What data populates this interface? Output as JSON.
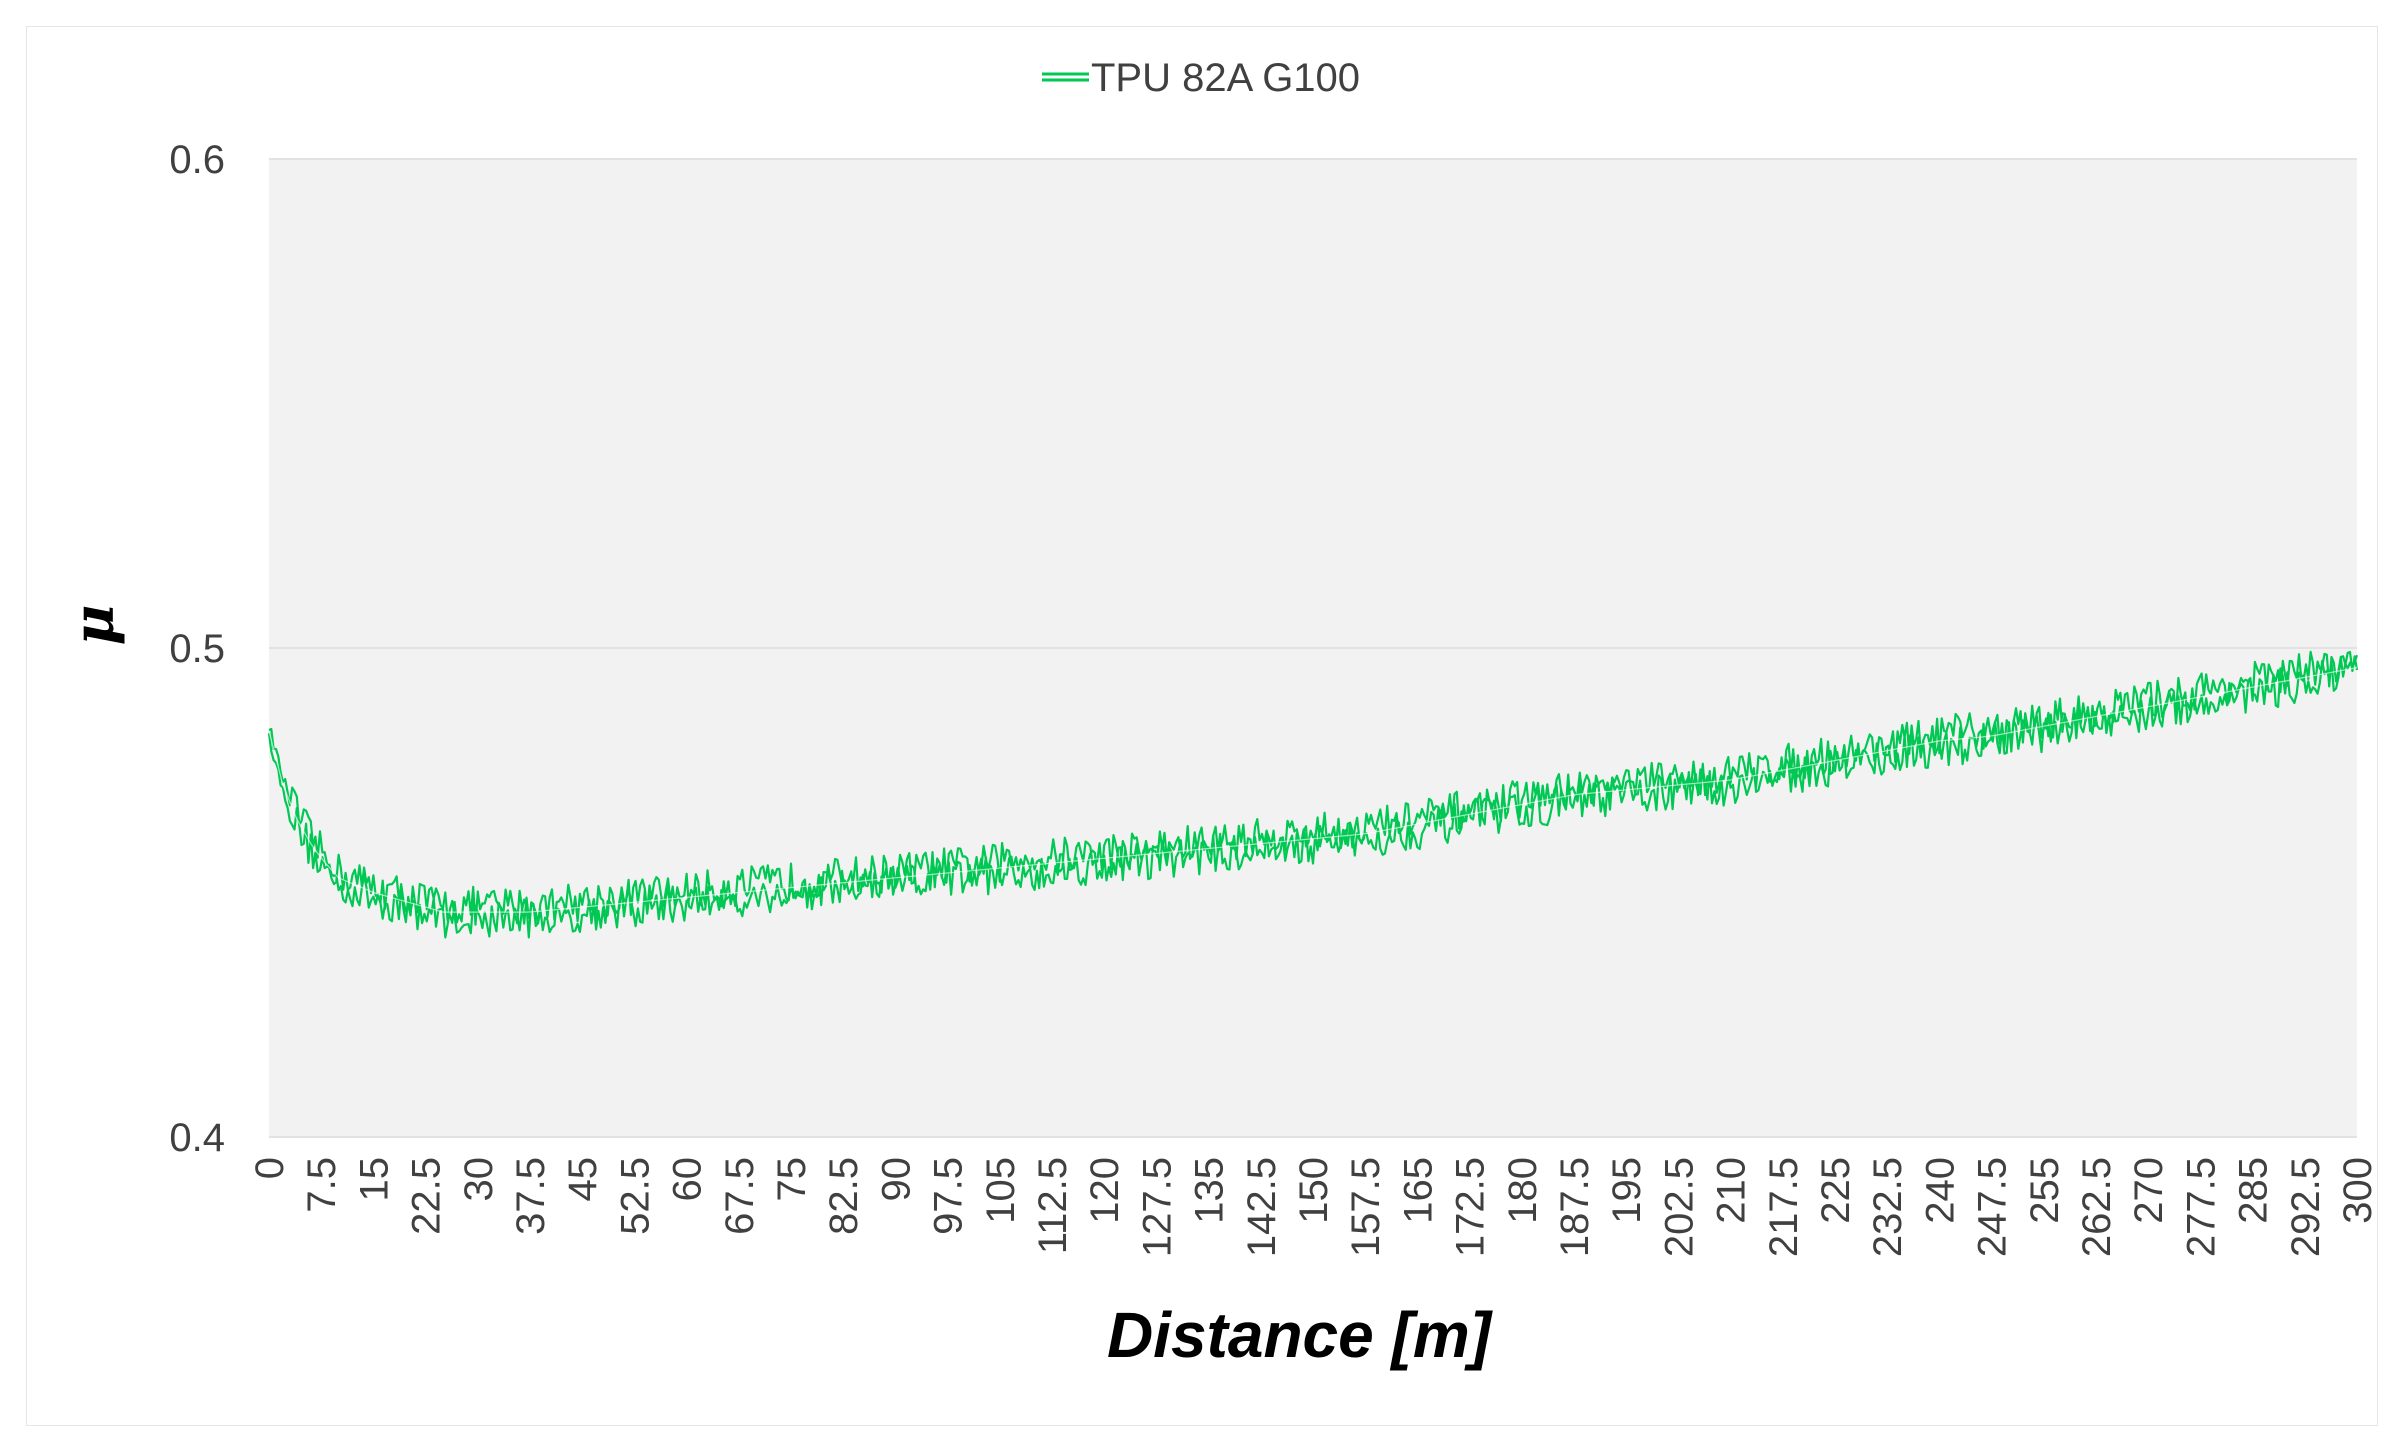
{
  "chart_data": {
    "type": "line",
    "title": "",
    "xlabel": "Distance [m]",
    "ylabel": "μ",
    "xlim": [
      0,
      300
    ],
    "ylim": [
      0.4,
      0.6
    ],
    "yticks": [
      "0.4",
      "0.5",
      "0.6"
    ],
    "xticks": [
      "0",
      "7.5",
      "15",
      "22.5",
      "30",
      "37.5",
      "45",
      "52.5",
      "60",
      "67.5",
      "75",
      "82.5",
      "90",
      "97.5",
      "105",
      "112.5",
      "120",
      "127.5",
      "135",
      "142.5",
      "150",
      "157.5",
      "165",
      "172.5",
      "180",
      "187.5",
      "195",
      "202.5",
      "210",
      "217.5",
      "225",
      "232.5",
      "240",
      "247.5",
      "255",
      "262.5",
      "270",
      "277.5",
      "285",
      "292.5",
      "300"
    ],
    "grid": true,
    "legend": "top-center",
    "series": [
      {
        "name": "TPU 82A G100",
        "color": "#00c853",
        "x": [
          0,
          2,
          4,
          6,
          7.5,
          10,
          15,
          20,
          22.5,
          25,
          30,
          37.5,
          45,
          52.5,
          60,
          67.5,
          75,
          82.5,
          90,
          97.5,
          105,
          112.5,
          120,
          127.5,
          135,
          142.5,
          150,
          157.5,
          165,
          172.5,
          180,
          187.5,
          195,
          202.5,
          210,
          217.5,
          225,
          232.5,
          240,
          247.5,
          255,
          262.5,
          270,
          277.5,
          285,
          292.5,
          300
        ],
        "y": [
          0.483,
          0.472,
          0.465,
          0.46,
          0.457,
          0.453,
          0.45,
          0.448,
          0.447,
          0.446,
          0.446,
          0.446,
          0.447,
          0.448,
          0.449,
          0.45,
          0.451,
          0.452,
          0.453,
          0.454,
          0.455,
          0.456,
          0.457,
          0.458,
          0.459,
          0.46,
          0.461,
          0.462,
          0.464,
          0.466,
          0.468,
          0.47,
          0.471,
          0.472,
          0.473,
          0.475,
          0.477,
          0.479,
          0.481,
          0.482,
          0.484,
          0.486,
          0.488,
          0.49,
          0.492,
          0.494,
          0.496
        ],
        "noise_amplitude": 0.004
      }
    ],
    "colors": {
      "plot_background": "#f2f2f2",
      "gridline": "#e2e2e2",
      "text": "#404040"
    }
  }
}
